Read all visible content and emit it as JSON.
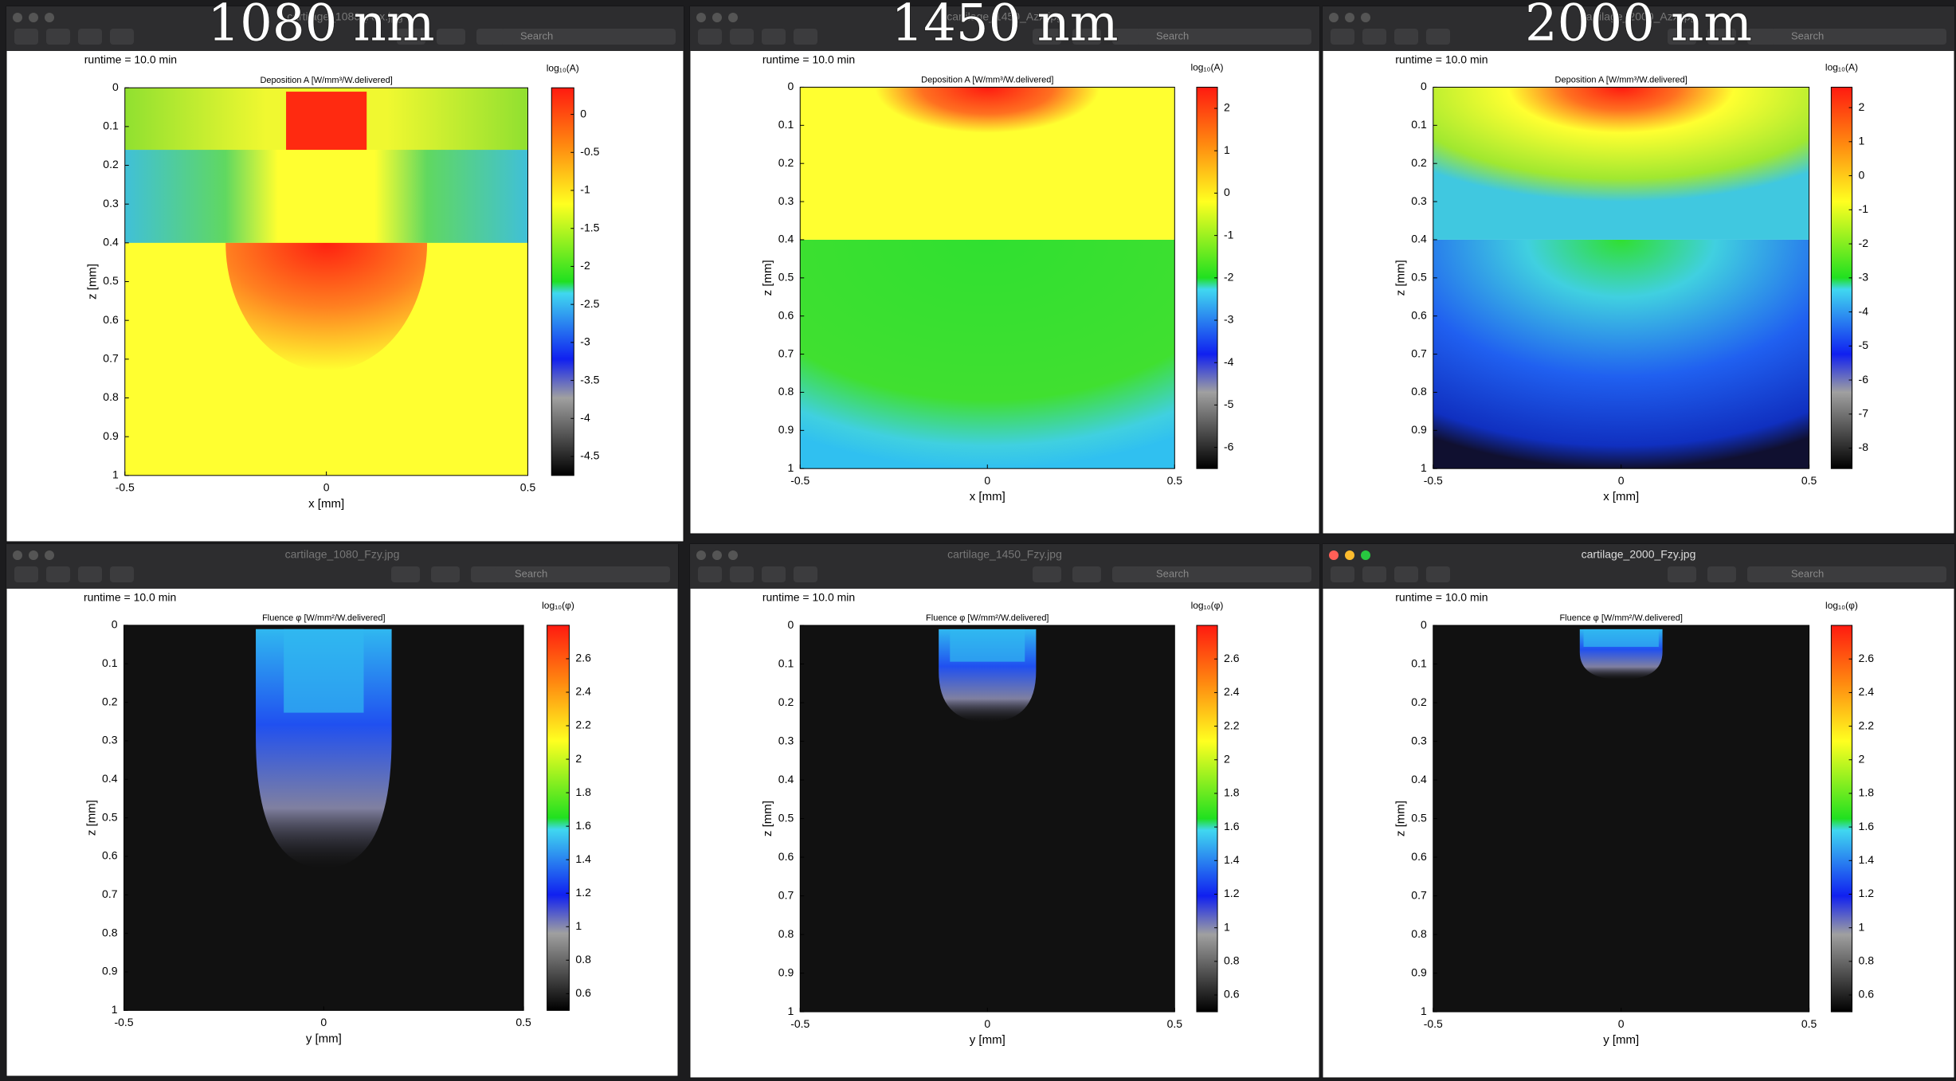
{
  "labels": [
    "1080 nm",
    "1450 nm",
    "2000 nm"
  ],
  "windows": [
    {
      "title": "cartilage_1080_Azx.jpg",
      "search": "Search",
      "runtime": "runtime = 10.0 min",
      "plot_title": "Deposition A [W/mm³/W.delivered]",
      "colorbar_title": "log₁₀(A)",
      "x_label": "x [mm]",
      "y_label": "z [mm]",
      "xlim": [
        -0.5,
        0.5
      ],
      "xticks": [
        -0.5,
        0,
        0.5
      ],
      "ylim": [
        1,
        0
      ],
      "yticks": [
        0,
        0.1,
        0.2,
        0.3,
        0.4,
        0.5,
        0.6,
        0.7,
        0.8,
        0.9,
        1
      ],
      "clim": [
        -4.75,
        0.35
      ],
      "cticks": [
        0,
        -0.5,
        -1,
        -1.5,
        -2,
        -2.5,
        -3,
        -3.5,
        -4,
        -4.5
      ]
    },
    {
      "title": "cartilage_1450_Azx.jpg",
      "search": "Search",
      "runtime": "runtime = 10.0 min",
      "plot_title": "Deposition A [W/mm³/W.delivered]",
      "colorbar_title": "log₁₀(A)",
      "x_label": "x [mm]",
      "y_label": "z [mm]",
      "xlim": [
        -0.5,
        0.5
      ],
      "xticks": [
        -0.5,
        0,
        0.5
      ],
      "ylim": [
        1,
        0
      ],
      "yticks": [
        0,
        0.1,
        0.2,
        0.3,
        0.4,
        0.5,
        0.6,
        0.7,
        0.8,
        0.9,
        1
      ],
      "clim": [
        -6.5,
        2.5
      ],
      "cticks": [
        2,
        1,
        0,
        -1,
        -2,
        -3,
        -4,
        -5,
        -6
      ]
    },
    {
      "title": "cartilage_2000_Azx.jpg",
      "search": "Search",
      "runtime": "runtime = 10.0 min",
      "plot_title": "Deposition A [W/mm³/W.delivered]",
      "colorbar_title": "log₁₀(A)",
      "x_label": "x [mm]",
      "y_label": "z [mm]",
      "xlim": [
        -0.5,
        0.5
      ],
      "xticks": [
        -0.5,
        0,
        0.5
      ],
      "ylim": [
        1,
        0
      ],
      "yticks": [
        0,
        0.1,
        0.2,
        0.3,
        0.4,
        0.5,
        0.6,
        0.7,
        0.8,
        0.9,
        1
      ],
      "clim": [
        -8.6,
        2.6
      ],
      "cticks": [
        2,
        1,
        0,
        -1,
        -2,
        -3,
        -4,
        -5,
        -6,
        -7,
        -8
      ]
    },
    {
      "title": "cartilage_1080_Fzy.jpg",
      "search": "Search",
      "runtime": "runtime = 10.0 min",
      "plot_title": "Fluence φ [W/mm²/W.delivered]",
      "colorbar_title": "log₁₀(φ)",
      "x_label": "y [mm]",
      "y_label": "z [mm]",
      "xlim": [
        -0.5,
        0.5
      ],
      "xticks": [
        -0.5,
        0,
        0.5
      ],
      "ylim": [
        1,
        0
      ],
      "yticks": [
        0,
        0.1,
        0.2,
        0.3,
        0.4,
        0.5,
        0.6,
        0.7,
        0.8,
        0.9,
        1
      ],
      "clim": [
        0.5,
        2.8
      ],
      "cticks": [
        2.6,
        2.4,
        2.2,
        2,
        1.8,
        1.6,
        1.4,
        1.2,
        1,
        0.8,
        0.6
      ]
    },
    {
      "title": "cartilage_1450_Fzy.jpg",
      "search": "Search",
      "runtime": "runtime = 10.0 min",
      "plot_title": "Fluence φ [W/mm²/W.delivered]",
      "colorbar_title": "log₁₀(φ)",
      "x_label": "y [mm]",
      "y_label": "z [mm]",
      "xlim": [
        -0.5,
        0.5
      ],
      "xticks": [
        -0.5,
        0,
        0.5
      ],
      "ylim": [
        1,
        0
      ],
      "yticks": [
        0,
        0.1,
        0.2,
        0.3,
        0.4,
        0.5,
        0.6,
        0.7,
        0.8,
        0.9,
        1
      ],
      "clim": [
        0.5,
        2.8
      ],
      "cticks": [
        2.6,
        2.4,
        2.2,
        2,
        1.8,
        1.6,
        1.4,
        1.2,
        1,
        0.8,
        0.6
      ]
    },
    {
      "title": "cartilage_2000_Fzy.jpg",
      "search": "Search",
      "runtime": "runtime = 10.0 min",
      "plot_title": "Fluence φ [W/mm²/W.delivered]",
      "colorbar_title": "log₁₀(φ)",
      "x_label": "y [mm]",
      "y_label": "z [mm]",
      "xlim": [
        -0.5,
        0.5
      ],
      "xticks": [
        -0.5,
        0,
        0.5
      ],
      "ylim": [
        1,
        0
      ],
      "yticks": [
        0,
        0.1,
        0.2,
        0.3,
        0.4,
        0.5,
        0.6,
        0.7,
        0.8,
        0.9,
        1
      ],
      "clim": [
        0.5,
        2.8
      ],
      "cticks": [
        2.6,
        2.4,
        2.2,
        2,
        1.8,
        1.6,
        1.4,
        1.2,
        1,
        0.8,
        0.6
      ]
    }
  ]
}
